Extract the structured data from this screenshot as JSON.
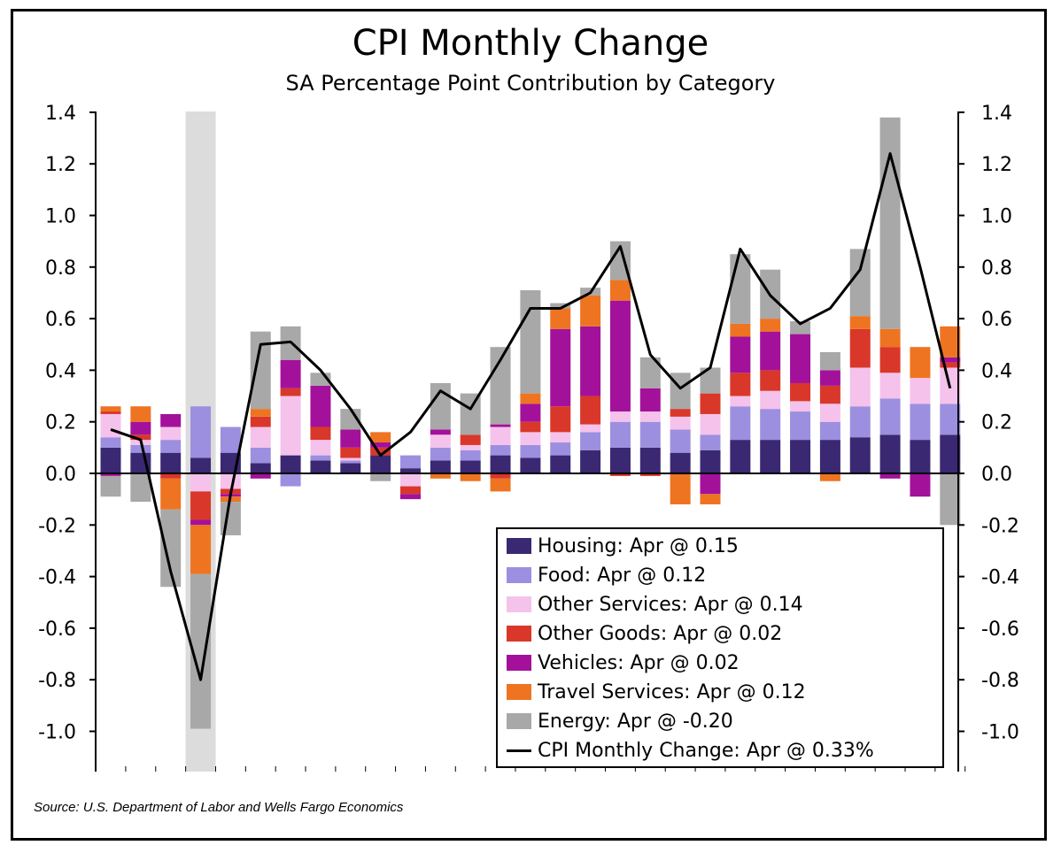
{
  "title": "CPI Monthly Change",
  "subtitle": "SA Percentage Point Contribution by Category",
  "source": "Source: U.S. Department of Labor and Wells Fargo Economics",
  "legend": [
    {
      "label": "Housing: Apr @ 0.15",
      "color": "#3b2872",
      "kind": "bar"
    },
    {
      "label": "Food: Apr @ 0.12",
      "color": "#9d8fdf",
      "kind": "bar"
    },
    {
      "label": "Other Services: Apr @ 0.14",
      "color": "#f5c2ec",
      "kind": "bar"
    },
    {
      "label": "Other Goods: Apr @ 0.02",
      "color": "#d9372a",
      "kind": "bar"
    },
    {
      "label": "Vehicles: Apr @ 0.02",
      "color": "#a3119a",
      "kind": "bar"
    },
    {
      "label": "Travel Services: Apr @ 0.12",
      "color": "#ee7421",
      "kind": "bar"
    },
    {
      "label": "Energy: Apr @ -0.20",
      "color": "#a8a8a8",
      "kind": "bar"
    },
    {
      "label": "CPI Monthly Change: Apr @ 0.33%",
      "color": "#000000",
      "kind": "line"
    }
  ],
  "chart_data": {
    "type": "bar",
    "stacked": true,
    "ylim": [
      -1.15,
      1.4
    ],
    "yticks": [
      "1.4",
      "1.2",
      "1.0",
      "0.8",
      "0.6",
      "0.4",
      "0.2",
      "0.0",
      "-0.2",
      "-0.4",
      "-0.6",
      "-0.8",
      "-1.0"
    ],
    "ytick_values": [
      1.4,
      1.2,
      1.0,
      0.8,
      0.6,
      0.4,
      0.2,
      0.0,
      -0.2,
      -0.4,
      -0.6,
      -0.8,
      -1.0
    ],
    "secondary_axis": true,
    "shaded_period_index": 3,
    "series": [
      {
        "name": "Housing",
        "color": "#3b2872",
        "values": [
          0.1,
          0.08,
          0.08,
          0.06,
          0.08,
          0.04,
          0.07,
          0.05,
          0.04,
          0.07,
          0.02,
          0.05,
          0.05,
          0.07,
          0.06,
          0.07,
          0.09,
          0.1,
          0.1,
          0.08,
          0.09,
          0.13,
          0.13,
          0.13,
          0.13,
          0.14,
          0.15,
          0.13,
          0.15
        ]
      },
      {
        "name": "Food",
        "color": "#9d8fdf",
        "values": [
          0.04,
          0.03,
          0.05,
          0.2,
          0.1,
          0.06,
          -0.05,
          0.02,
          0.01,
          0.0,
          0.05,
          0.05,
          0.04,
          0.04,
          0.05,
          0.05,
          0.07,
          0.1,
          0.1,
          0.09,
          0.06,
          0.13,
          0.12,
          0.11,
          0.07,
          0.12,
          0.14,
          0.14,
          0.12
        ]
      },
      {
        "name": "Other Services",
        "color": "#f5c2ec",
        "values": [
          0.09,
          0.02,
          0.05,
          -0.07,
          -0.06,
          0.08,
          0.23,
          0.06,
          0.01,
          0.0,
          -0.05,
          0.05,
          0.02,
          0.07,
          0.05,
          0.04,
          0.03,
          0.04,
          0.04,
          0.05,
          0.08,
          0.04,
          0.07,
          0.04,
          0.07,
          0.15,
          0.1,
          0.1,
          0.14
        ]
      },
      {
        "name": "Other Goods",
        "color": "#d9372a",
        "values": [
          0.01,
          0.02,
          -0.02,
          -0.11,
          -0.02,
          0.04,
          0.03,
          0.05,
          0.04,
          0.03,
          -0.03,
          0.0,
          0.04,
          -0.02,
          0.04,
          0.1,
          0.11,
          -0.01,
          -0.01,
          0.03,
          0.08,
          0.09,
          0.08,
          0.07,
          0.07,
          0.15,
          0.1,
          0.0,
          0.02
        ]
      },
      {
        "name": "Vehicles",
        "color": "#a3119a",
        "values": [
          -0.01,
          0.05,
          0.05,
          -0.02,
          -0.01,
          -0.02,
          0.11,
          0.16,
          0.07,
          0.02,
          -0.02,
          0.02,
          0.0,
          0.01,
          0.07,
          0.3,
          0.27,
          0.43,
          0.09,
          0.0,
          -0.08,
          0.14,
          0.15,
          0.19,
          0.06,
          0.0,
          -0.02,
          -0.09,
          0.02
        ]
      },
      {
        "name": "Travel Services",
        "color": "#ee7421",
        "values": [
          0.02,
          0.06,
          -0.12,
          -0.19,
          -0.02,
          0.03,
          0.0,
          0.0,
          0.0,
          0.04,
          0.0,
          -0.02,
          -0.03,
          -0.05,
          0.04,
          0.08,
          0.12,
          0.08,
          0.0,
          -0.12,
          -0.04,
          0.05,
          0.05,
          0.0,
          -0.03,
          0.05,
          0.07,
          0.12,
          0.12
        ]
      },
      {
        "name": "Energy",
        "color": "#a8a8a8",
        "values": [
          -0.08,
          -0.11,
          -0.3,
          -0.6,
          -0.13,
          0.3,
          0.13,
          0.05,
          0.08,
          -0.03,
          0.0,
          0.18,
          0.16,
          0.3,
          0.4,
          0.02,
          0.03,
          0.15,
          0.12,
          0.14,
          0.1,
          0.27,
          0.19,
          0.05,
          0.07,
          0.26,
          0.82,
          0.0,
          -0.2
        ]
      },
      {
        "name": "CPI Monthly Change",
        "type": "line",
        "color": "#000000",
        "values": [
          0.17,
          0.13,
          -0.38,
          -0.8,
          -0.08,
          0.5,
          0.51,
          0.4,
          0.25,
          0.07,
          0.16,
          0.32,
          0.25,
          0.44,
          0.64,
          0.64,
          0.7,
          0.88,
          0.46,
          0.33,
          0.41,
          0.87,
          0.69,
          0.58,
          0.64,
          0.79,
          1.24,
          0.8,
          0.33
        ]
      }
    ]
  }
}
